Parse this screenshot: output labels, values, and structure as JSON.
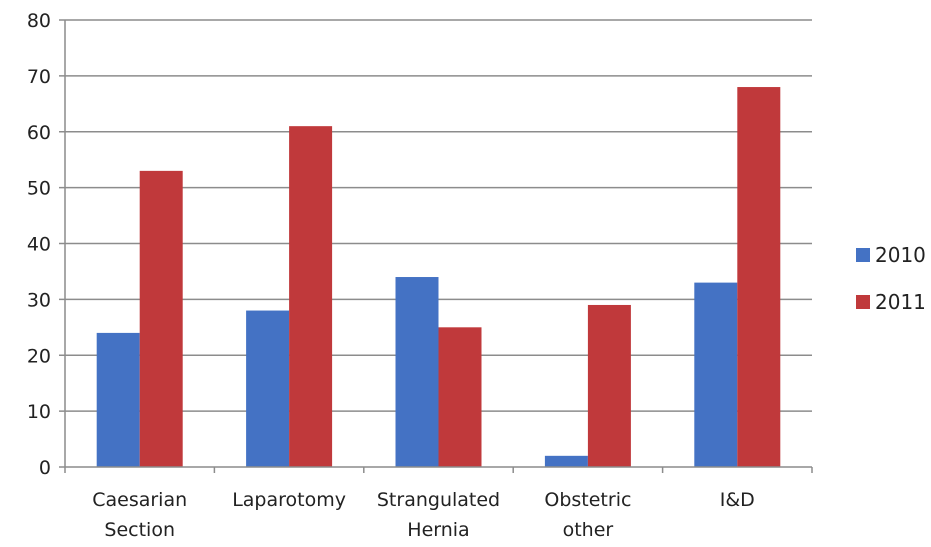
{
  "chart_data": {
    "type": "bar",
    "categories": [
      [
        "Caesarian",
        "Section"
      ],
      [
        "Laparotomy"
      ],
      [
        "Strangulated",
        "Hernia"
      ],
      [
        "Obstetric",
        "other"
      ],
      [
        "I&D"
      ]
    ],
    "series": [
      {
        "name": "2010",
        "values": [
          24,
          28,
          34,
          2,
          33
        ],
        "color": "#4472C4"
      },
      {
        "name": "2011",
        "values": [
          53,
          61,
          25,
          29,
          68
        ],
        "color": "#C0393B"
      }
    ],
    "ylim": [
      0,
      80
    ],
    "yticks": [
      0,
      10,
      20,
      30,
      40,
      50,
      60,
      70,
      80
    ],
    "grid": true,
    "legend_position": "right",
    "title": "",
    "xlabel": "",
    "ylabel": ""
  }
}
